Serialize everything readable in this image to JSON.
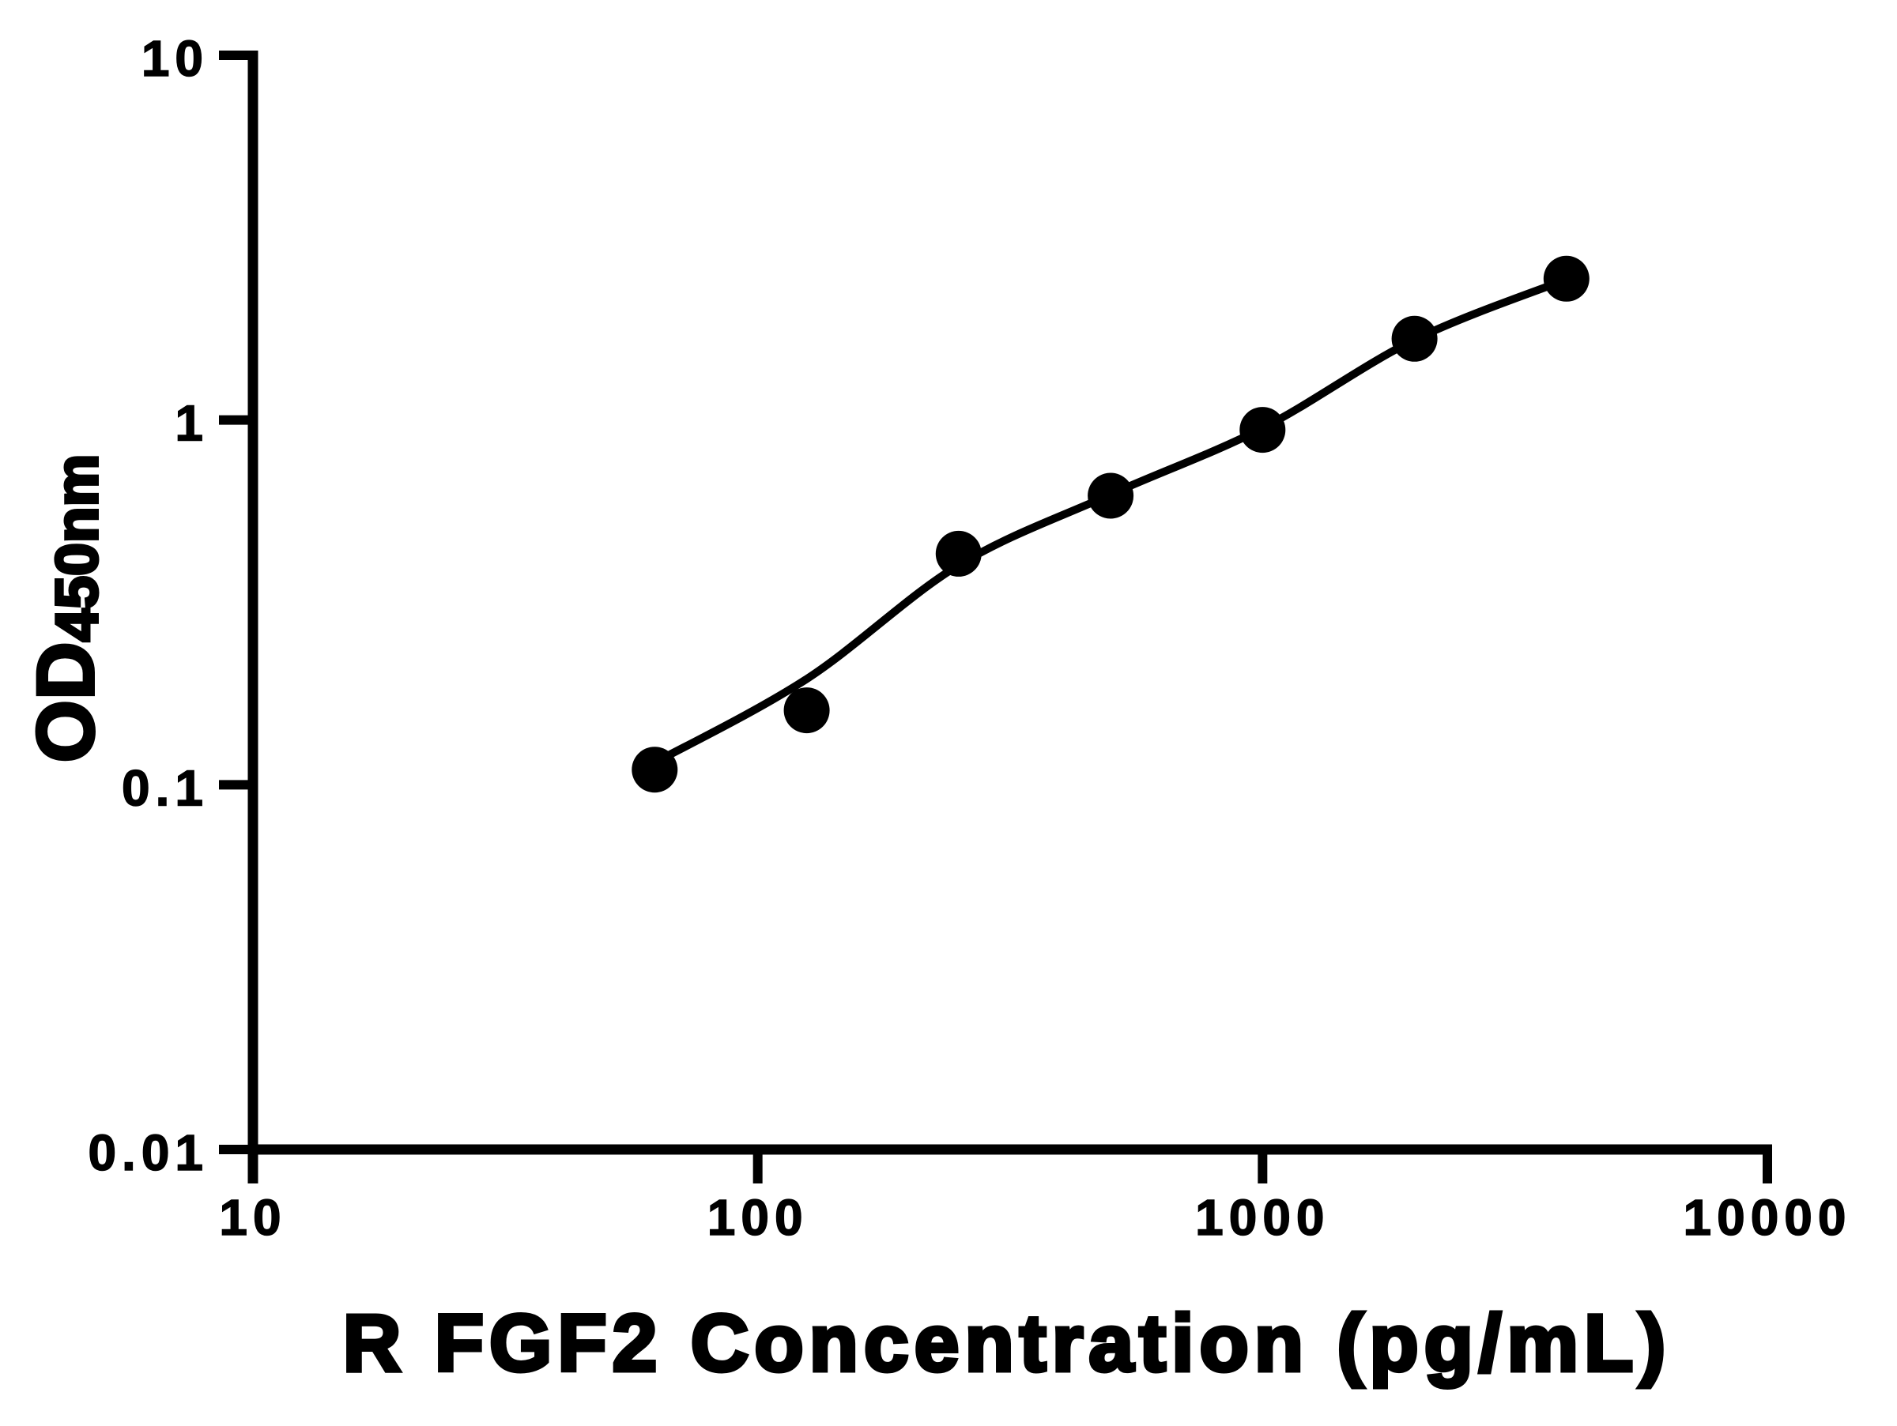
{
  "figure": {
    "background": "#ffffff",
    "ink": "#000000"
  },
  "chart_data": {
    "type": "scatter",
    "title": "",
    "xlabel": "R FGF2 Concentration (pg/mL)",
    "ylabel_main": "OD",
    "ylabel_sub": "450nm",
    "x_scale": "log",
    "y_scale": "log",
    "xlim": [
      10,
      10000
    ],
    "ylim": [
      0.01,
      10
    ],
    "grid": false,
    "legend": "none",
    "x_ticks": [
      {
        "value": 10,
        "label": "10"
      },
      {
        "value": 100,
        "label": "100"
      },
      {
        "value": 1000,
        "label": "1000"
      },
      {
        "value": 10000,
        "label": "10000"
      }
    ],
    "y_ticks": [
      {
        "value": 10,
        "label": "10"
      },
      {
        "value": 1,
        "label": "1"
      },
      {
        "value": 0.1,
        "label": "0.1"
      },
      {
        "value": 0.01,
        "label": "0.01"
      }
    ],
    "series": [
      {
        "name": "standard_points",
        "type": "scatter",
        "marker": "filled-circle",
        "color": "#000000",
        "points": [
          {
            "x": 62.5,
            "y": 0.11
          },
          {
            "x": 125,
            "y": 0.16
          },
          {
            "x": 250,
            "y": 0.43
          },
          {
            "x": 500,
            "y": 0.62
          },
          {
            "x": 1000,
            "y": 0.94
          },
          {
            "x": 2000,
            "y": 1.67
          },
          {
            "x": 4000,
            "y": 2.44
          }
        ]
      },
      {
        "name": "fit_curve",
        "type": "line",
        "color": "#000000",
        "points": [
          {
            "x": 62.5,
            "y": 0.115
          },
          {
            "x": 125,
            "y": 0.195
          },
          {
            "x": 250,
            "y": 0.4
          },
          {
            "x": 500,
            "y": 0.625
          },
          {
            "x": 1000,
            "y": 0.95
          },
          {
            "x": 2000,
            "y": 1.66
          },
          {
            "x": 4000,
            "y": 2.43
          }
        ]
      }
    ]
  }
}
